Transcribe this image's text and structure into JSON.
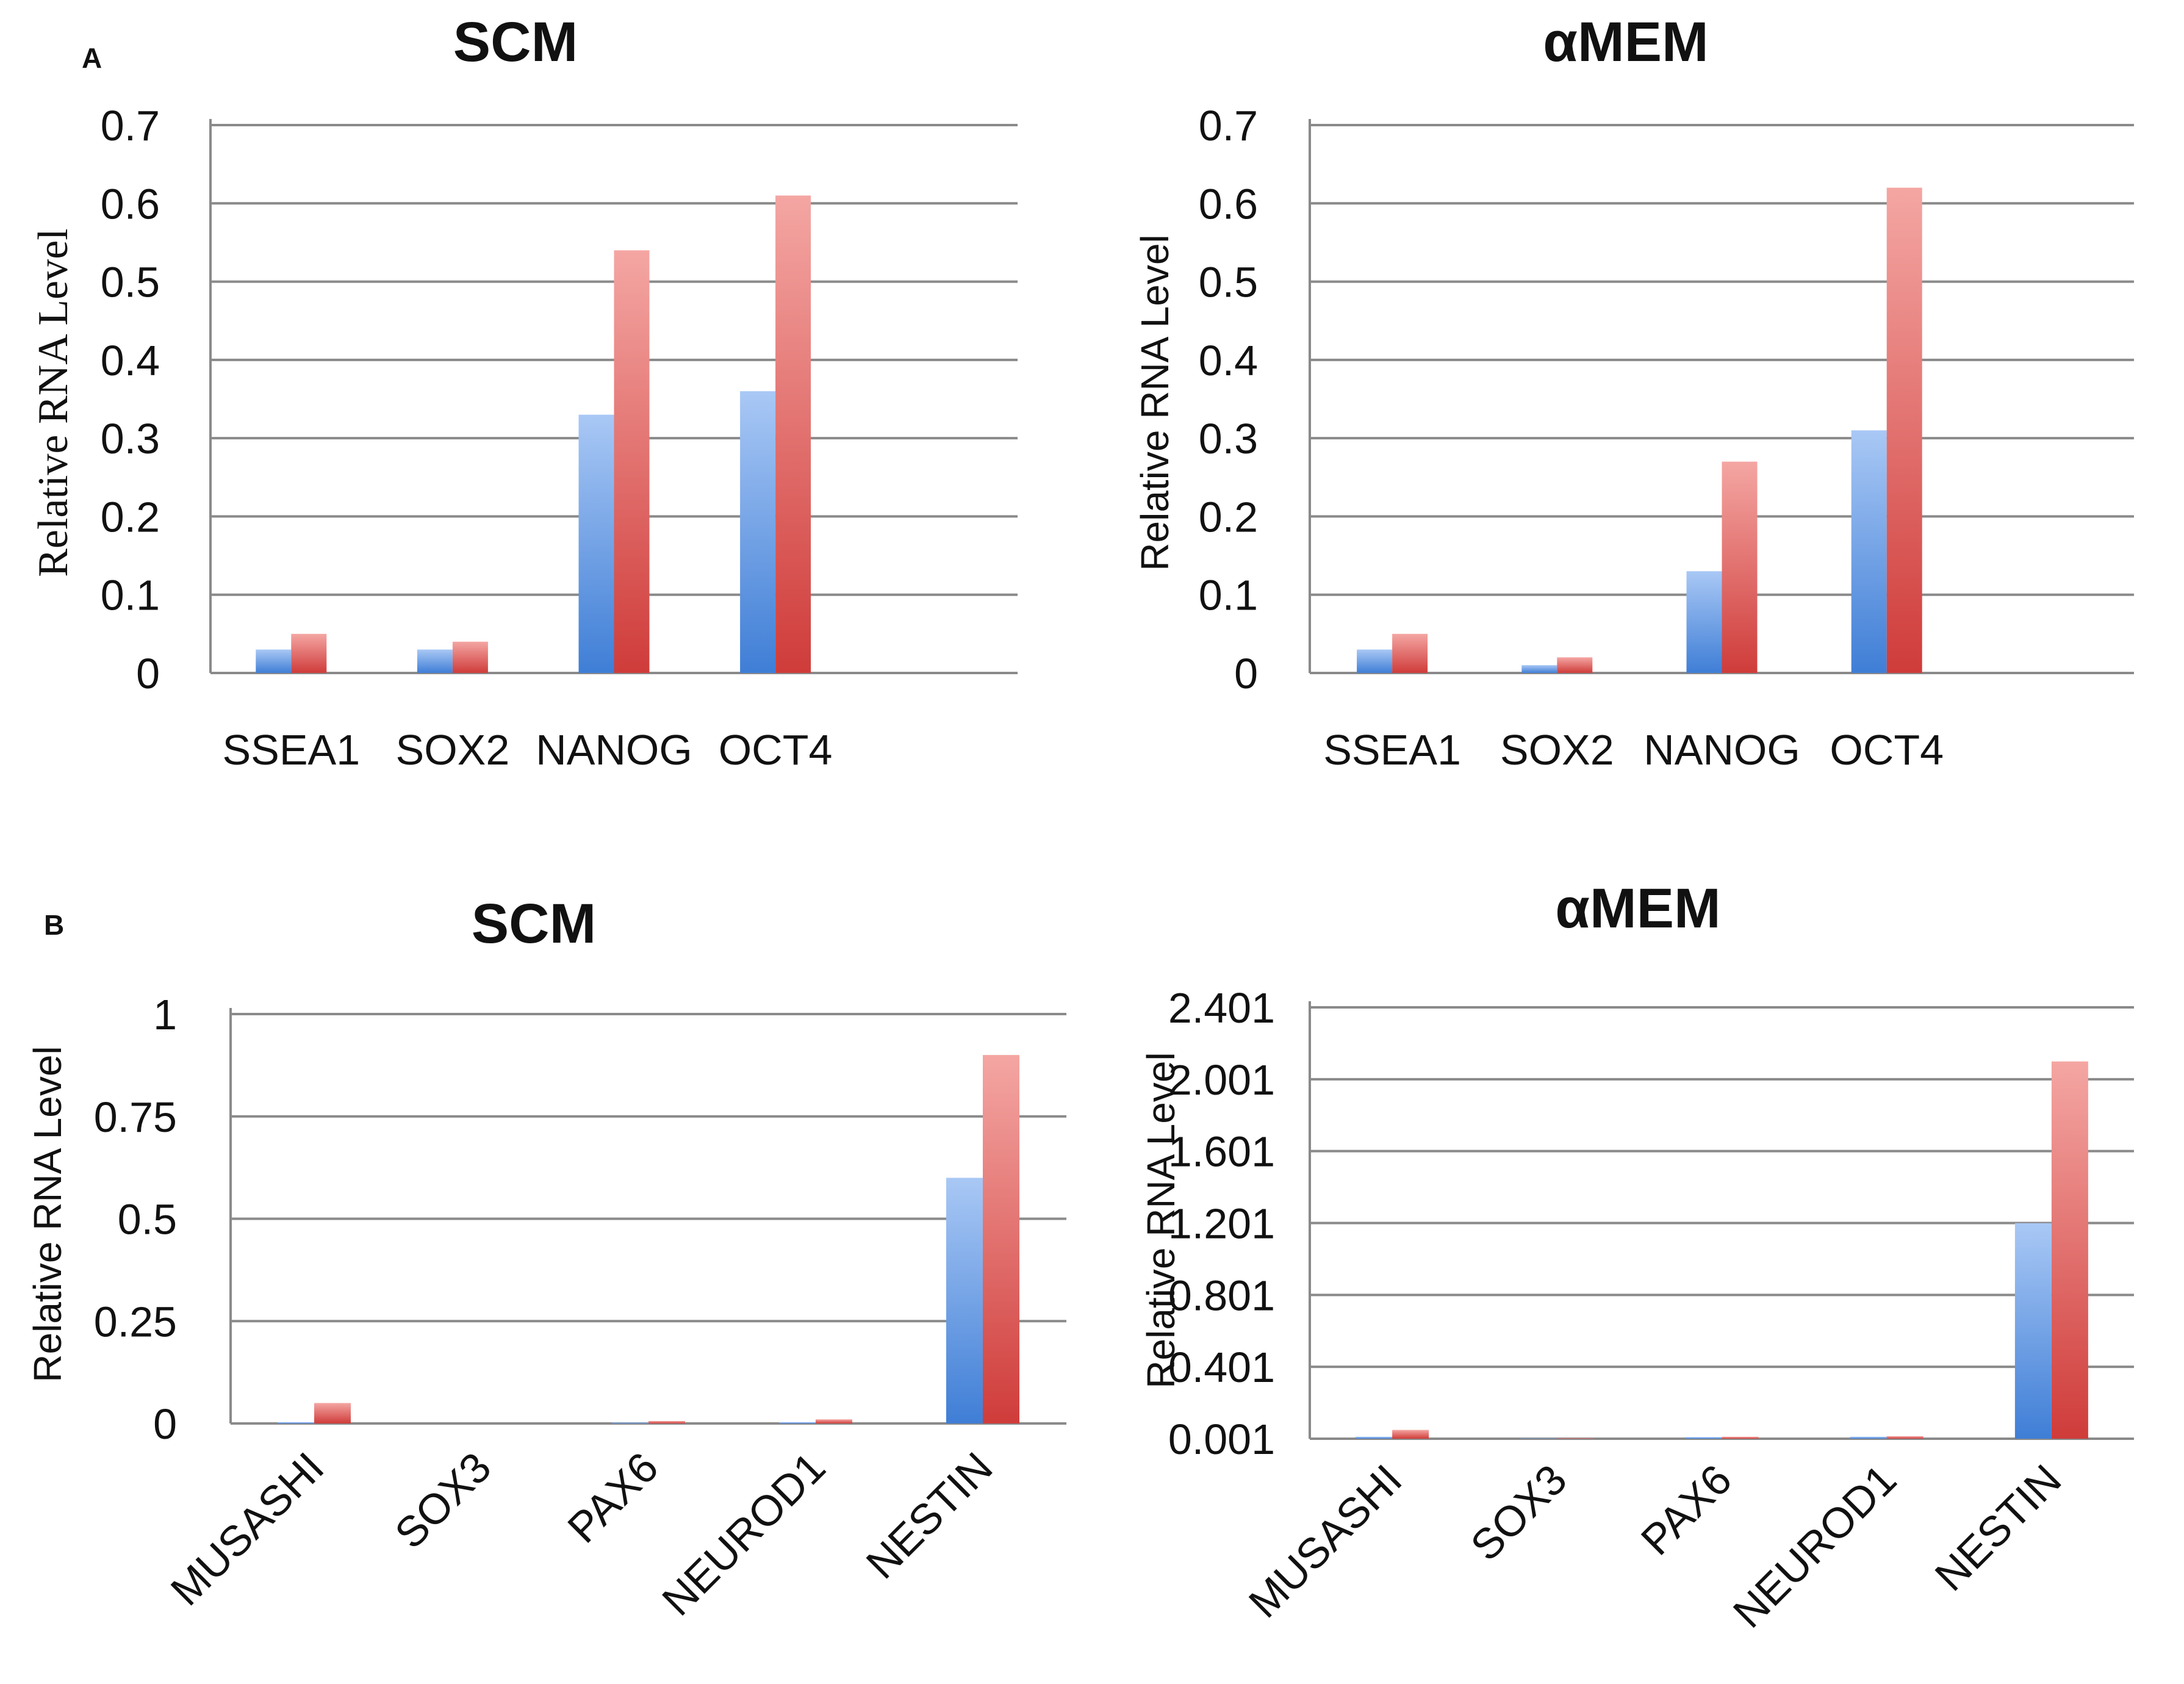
{
  "panels": [
    {
      "letter": "A"
    },
    {
      "letter": "B"
    }
  ],
  "colors": {
    "series1_top": "#a9c8f5",
    "series1_bottom": "#3f7ed6",
    "series2_top": "#f4a6a3",
    "series2_bottom": "#cf3c3a",
    "grid": "#8a8a8a",
    "text": "#111111"
  },
  "chart_data": [
    {
      "type": "bar",
      "panel": "A",
      "title": "SCM",
      "ylabel": "Relative RNA Level",
      "xlabel": "",
      "categories": [
        "SSEA1",
        "SOX2",
        "NANOG",
        "OCT4"
      ],
      "empty_trailing_slots": 1,
      "series": [
        {
          "name": "series 1",
          "values": [
            0.03,
            0.03,
            0.33,
            0.36
          ]
        },
        {
          "name": "series 2",
          "values": [
            0.05,
            0.04,
            0.54,
            0.61
          ]
        }
      ],
      "ylim": [
        0,
        0.7
      ],
      "yticks": [
        0,
        0.1,
        0.2,
        0.3,
        0.4,
        0.5,
        0.6,
        0.7
      ],
      "ytick_labels": [
        "0",
        "0.1",
        "0.2",
        "0.3",
        "0.4",
        "0.5",
        "0.6",
        "0.7"
      ],
      "grid": true,
      "legend": "none"
    },
    {
      "type": "bar",
      "panel": "A",
      "title": "αMEM",
      "ylabel": "Relative RNA Level",
      "xlabel": "",
      "categories": [
        "SSEA1",
        "SOX2",
        "NANOG",
        "OCT4"
      ],
      "empty_trailing_slots": 1,
      "series": [
        {
          "name": "series 1",
          "values": [
            0.03,
            0.01,
            0.13,
            0.31
          ]
        },
        {
          "name": "series 2",
          "values": [
            0.05,
            0.02,
            0.27,
            0.62
          ]
        }
      ],
      "ylim": [
        0,
        0.7
      ],
      "yticks": [
        0,
        0.1,
        0.2,
        0.3,
        0.4,
        0.5,
        0.6,
        0.7
      ],
      "ytick_labels": [
        "0",
        "0.1",
        "0.2",
        "0.3",
        "0.4",
        "0.5",
        "0.6",
        "0.7"
      ],
      "grid": true,
      "legend": "none"
    },
    {
      "type": "bar",
      "panel": "B",
      "title": "SCM",
      "ylabel": "Relative RNA Level",
      "xlabel": "",
      "categories": [
        "MUSASHI",
        "SOX3",
        "PAX6",
        "NEUROD1",
        "NESTIN"
      ],
      "empty_trailing_slots": 0,
      "series": [
        {
          "name": "series 1",
          "values": [
            0.003,
            0.0,
            0.002,
            0.003,
            0.6
          ]
        },
        {
          "name": "series 2",
          "values": [
            0.05,
            0.0,
            0.006,
            0.01,
            0.9
          ]
        }
      ],
      "ylim": [
        0,
        1
      ],
      "yticks": [
        0,
        0.25,
        0.5,
        0.75,
        1
      ],
      "ytick_labels": [
        "0",
        "0.25",
        "0.5",
        "0.75",
        "1"
      ],
      "grid": true,
      "legend": "none",
      "rotated_category_labels": true
    },
    {
      "type": "bar",
      "panel": "B",
      "title": "αMEM",
      "ylabel": "Relative RNA Level",
      "xlabel": "",
      "categories": [
        "MUSASHI",
        "SOX3",
        "PAX6",
        "NEUROD1",
        "NESTIN"
      ],
      "empty_trailing_slots": 0,
      "series": [
        {
          "name": "series 1",
          "values": [
            0.012,
            0.003,
            0.01,
            0.012,
            1.2
          ]
        },
        {
          "name": "series 2",
          "values": [
            0.05,
            0.004,
            0.012,
            0.015,
            2.1
          ]
        }
      ],
      "ylim": [
        0.001,
        2.401
      ],
      "yticks": [
        0.001,
        0.401,
        0.801,
        1.201,
        1.601,
        2.001,
        2.401
      ],
      "ytick_labels": [
        "0.001",
        "0.401",
        "0.801",
        "1.201",
        "1.601",
        "2.001",
        "2.401"
      ],
      "grid": true,
      "legend": "none",
      "rotated_category_labels": true
    }
  ]
}
